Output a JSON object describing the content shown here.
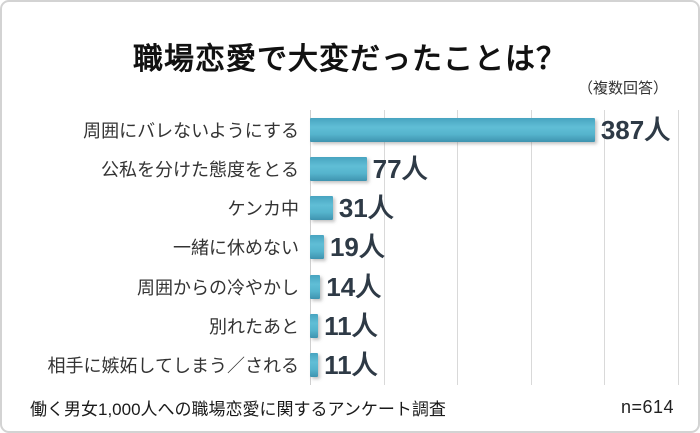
{
  "title": "職場恋愛で大変だったことは？",
  "subtitle": "（複数回答）",
  "footer": {
    "source": "働く男女1,000人への職場恋愛に関するアンケート調査",
    "sample_size": "n=614"
  },
  "colors": {
    "bar": "#55b4cd",
    "bar_gradient_top": "#48a4c0",
    "bar_gradient_bottom": "#3e93af",
    "gridline": "#d9d9d9",
    "value_text": "#2e3a46",
    "label_text": "#333333",
    "frame_border": "#d3d3d3"
  },
  "chart_data": {
    "type": "bar",
    "orientation": "horizontal",
    "title": "職場恋愛で大変だったことは？",
    "subtitle": "（複数回答）",
    "categories": [
      "周囲にバレないようにする",
      "公私を分けた態度をとる",
      "ケンカ中",
      "一緒に休めない",
      "周囲からの冷やかし",
      "別れたあと",
      "相手に嫉妬してしまう／される"
    ],
    "values": [
      387,
      77,
      31,
      19,
      14,
      11,
      11
    ],
    "value_labels": [
      "387人",
      "77人",
      "31人",
      "19人",
      "14人",
      "11人",
      "11人"
    ],
    "unit": "人",
    "xlabel": "",
    "ylabel": "",
    "xlim": [
      0,
      500
    ],
    "gridline_interval": 100,
    "grid": true,
    "legend": null,
    "annotation": "n=614"
  }
}
